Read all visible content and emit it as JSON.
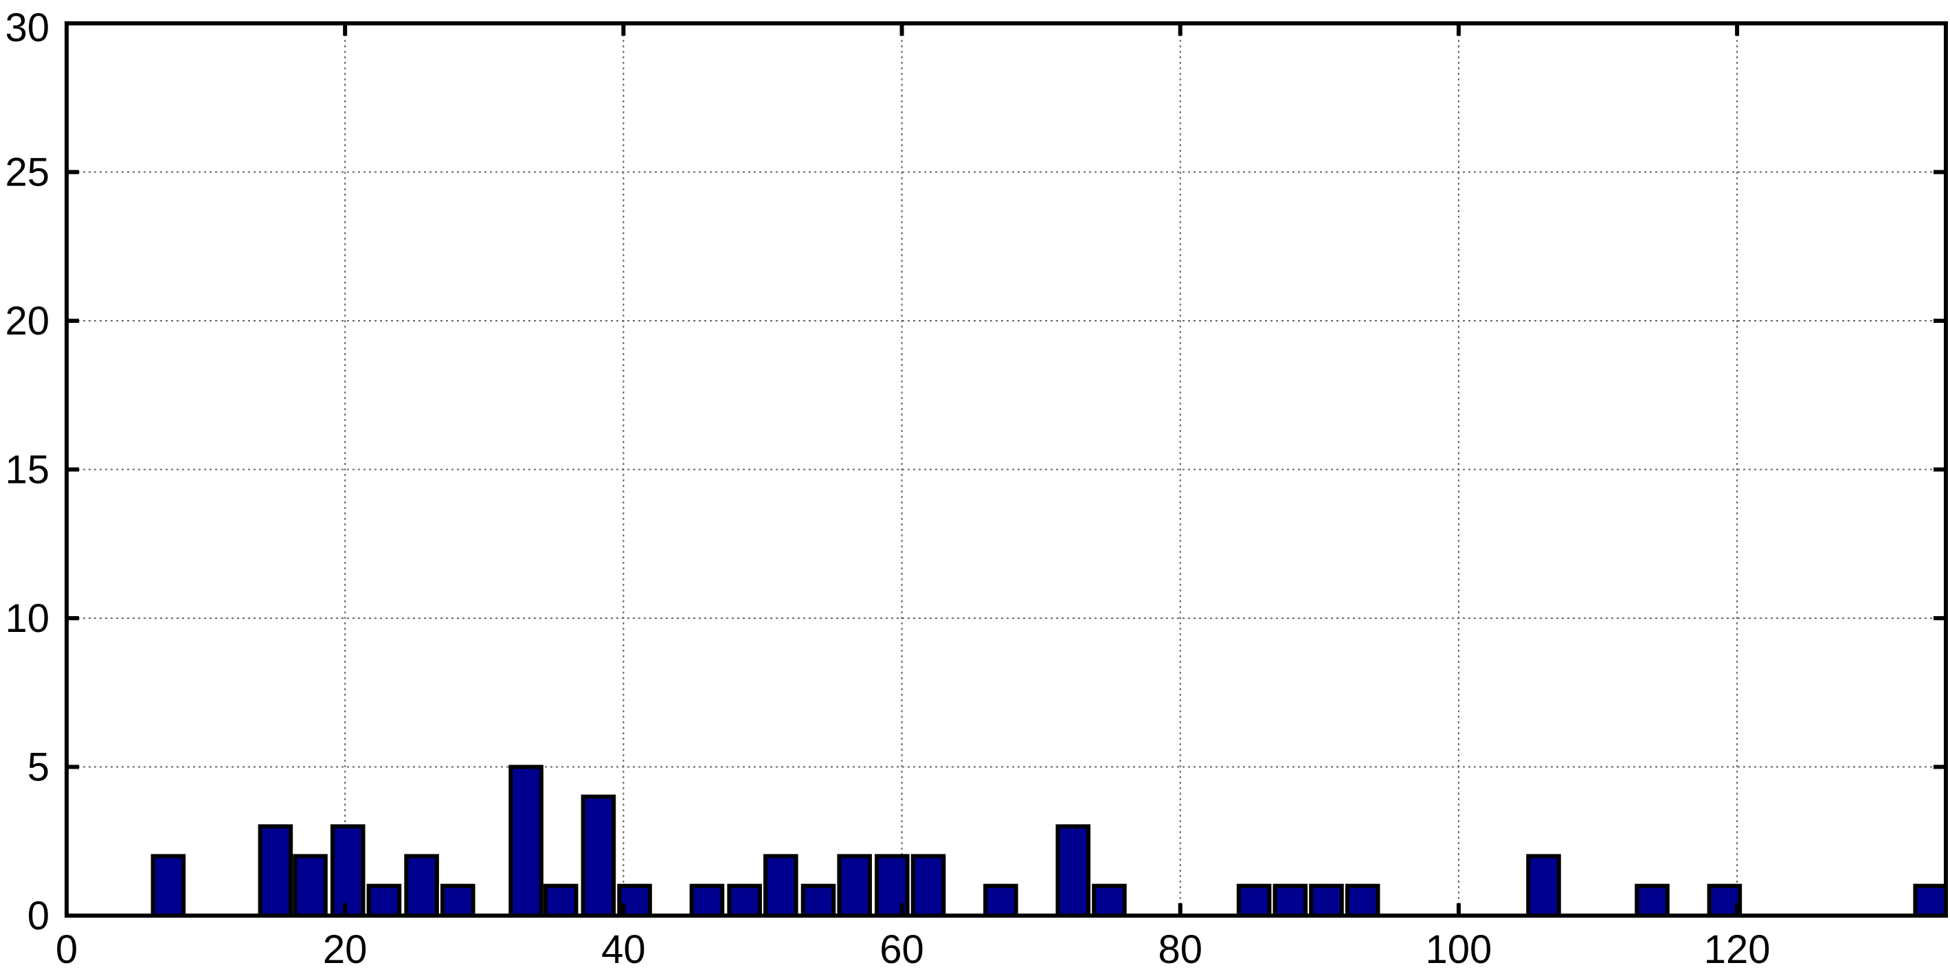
{
  "chart_data": {
    "type": "bar",
    "title": "",
    "xlabel": "",
    "ylabel": "",
    "xlim": [
      0,
      135
    ],
    "ylim": [
      0,
      30
    ],
    "xticks": [
      "0",
      "20",
      "40",
      "60",
      "80",
      "100",
      "120"
    ],
    "yticks": [
      "0",
      "5",
      "10",
      "15",
      "20",
      "25",
      "30"
    ],
    "grid": true,
    "bar_width": 2.2,
    "bar_color": "#00008f",
    "x": [
      7.3,
      15,
      17.5,
      20.2,
      22.8,
      25.5,
      28.1,
      33,
      35.5,
      38.2,
      40.8,
      46,
      48.7,
      51.3,
      54,
      56.6,
      59.3,
      61.9,
      67.1,
      72.3,
      74.9,
      85.3,
      87.9,
      90.5,
      93.1,
      106.1,
      113.9,
      119.1,
      134.7
    ],
    "values": [
      2,
      3,
      2,
      3,
      1,
      2,
      1,
      5,
      1,
      4,
      1,
      1,
      1,
      2,
      1,
      2,
      2,
      2,
      1,
      3,
      1,
      1,
      1,
      1,
      1,
      2,
      1,
      1,
      1
    ]
  }
}
